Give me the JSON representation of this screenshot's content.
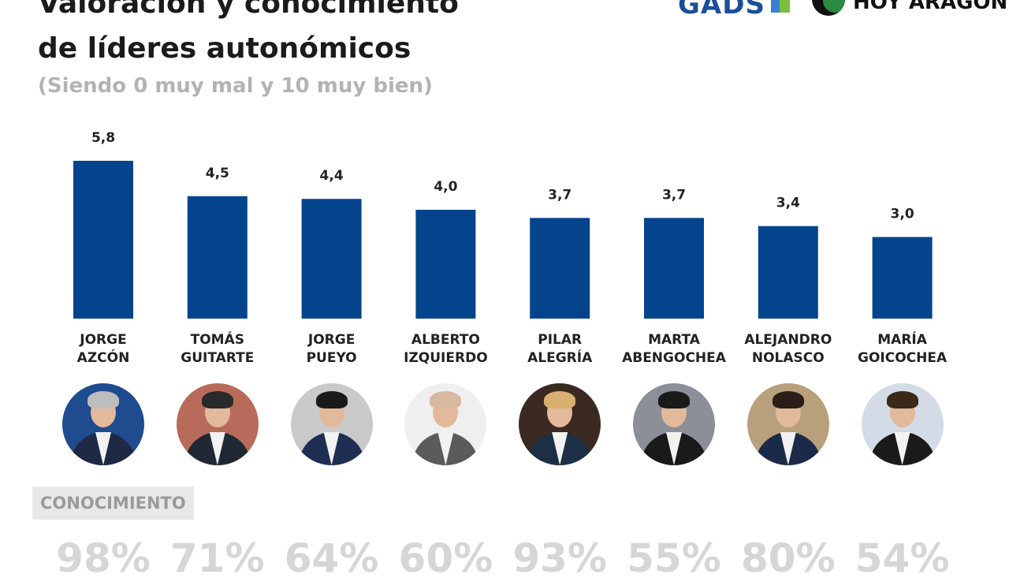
{
  "header": {
    "title_lines": [
      "Valoración y conocimiento",
      "de líderes autonómicos"
    ],
    "subtitle": "(Siendo 0 muy mal y 10 muy bien)"
  },
  "logos": {
    "gad": "GADS",
    "hoy": "HOY ARAGÓN",
    "gad_colors": [
      "#1c4f9a",
      "#3c7fd0",
      "#7bbf3c"
    ],
    "hoy_colors": [
      "#111111",
      "#2a8a3e"
    ]
  },
  "chart_data": {
    "type": "bar",
    "title": "Valoración y conocimiento de líderes autonómicos",
    "subtitle": "(Siendo 0 muy mal y 10 muy bien)",
    "categories": [
      [
        "JORGE",
        "AZCÓN"
      ],
      [
        "TOMÁS",
        "GUITARTE"
      ],
      [
        "JORGE",
        "PUEYO"
      ],
      [
        "ALBERTO",
        "IZQUIERDO"
      ],
      [
        "PILAR",
        "ALEGRÍA"
      ],
      [
        "MARTA",
        "ABENGOCHEA"
      ],
      [
        "ALEJANDRO",
        "NOLASCO"
      ],
      [
        "MARÍA",
        "GOICOCHEA"
      ]
    ],
    "values": [
      5.8,
      4.5,
      4.4,
      4.0,
      3.7,
      3.7,
      3.4,
      3.0
    ],
    "value_labels": [
      "5,8",
      "4,5",
      "4,4",
      "4,0",
      "3,7",
      "3,7",
      "3,4",
      "3,0"
    ],
    "ylim": [
      0,
      10
    ],
    "grid": false,
    "bar_color": "#04448c",
    "conocimiento": {
      "label": "CONOCIMIENTO",
      "values": [
        98,
        71,
        64,
        60,
        93,
        55,
        80,
        54
      ],
      "value_labels": [
        "98%",
        "71%",
        "64%",
        "60%",
        "93%",
        "55%",
        "80%",
        "54%"
      ]
    }
  },
  "avatars": [
    {
      "bg": "#1f4b8f",
      "suit": "#1e2a44",
      "hair": "#bdbdbd"
    },
    {
      "bg": "#b86b5a",
      "suit": "#1f2833",
      "hair": "#2a2a2a"
    },
    {
      "bg": "#c9c9c9",
      "suit": "#1e2d52",
      "hair": "#1a1a1a"
    },
    {
      "bg": "#efefef",
      "suit": "#5b5b5b",
      "hair": "#d9b8a0"
    },
    {
      "bg": "#3a2a22",
      "suit": "#1c2f45",
      "hair": "#d9b070"
    },
    {
      "bg": "#8a8f98",
      "suit": "#1a1a1a",
      "hair": "#1a1a1a"
    },
    {
      "bg": "#b9a07c",
      "suit": "#1c2a4a",
      "hair": "#2a1f18"
    },
    {
      "bg": "#d3dbe6",
      "suit": "#1a1a1a",
      "hair": "#3a2818"
    }
  ]
}
